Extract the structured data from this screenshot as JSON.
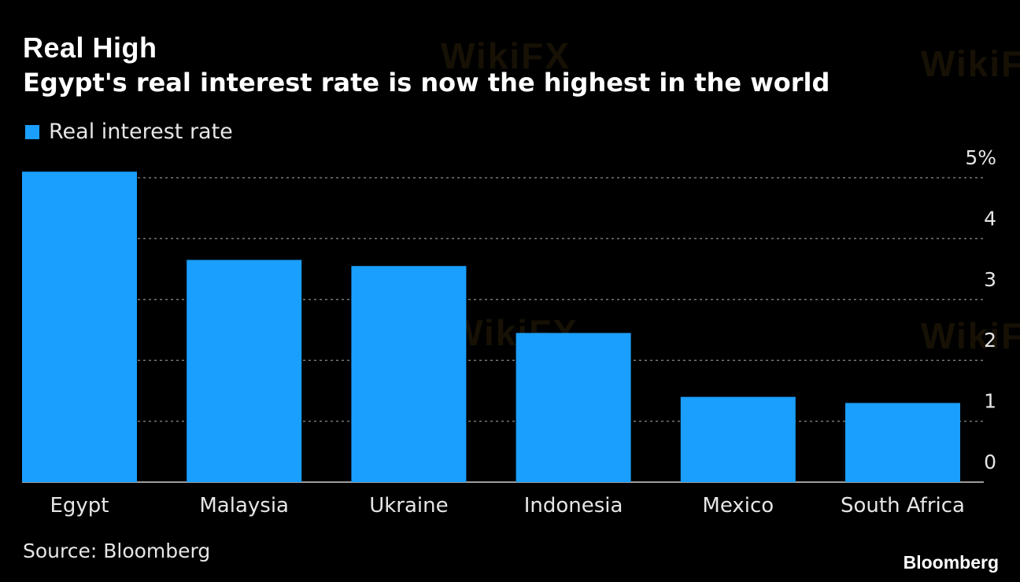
{
  "header": {
    "title": "Real High",
    "subtitle": "Egypt's real interest rate is now the highest in the world"
  },
  "footer": {
    "source": "Source: Bloomberg",
    "brand": "Bloomberg"
  },
  "watermark": {
    "text": "WikiFX"
  },
  "colors": {
    "bar": "#1a9fff",
    "background": "#000000",
    "grid": "#777777",
    "text": "#e6e6e6"
  },
  "chart_data": {
    "type": "bar",
    "categories": [
      "Egypt",
      "Malaysia",
      "Ukraine",
      "Indonesia",
      "Mexico",
      "South Africa"
    ],
    "series": [
      {
        "name": "Real interest rate",
        "values": [
          5.1,
          3.65,
          3.55,
          2.45,
          1.4,
          1.3
        ]
      }
    ],
    "yticks": [
      "0",
      "1",
      "2",
      "3",
      "4",
      "5%"
    ],
    "ylim": [
      0,
      5
    ],
    "grid": true,
    "legend": "top-left",
    "title": "Real High",
    "subtitle": "Egypt's real interest rate is now the highest in the world"
  }
}
